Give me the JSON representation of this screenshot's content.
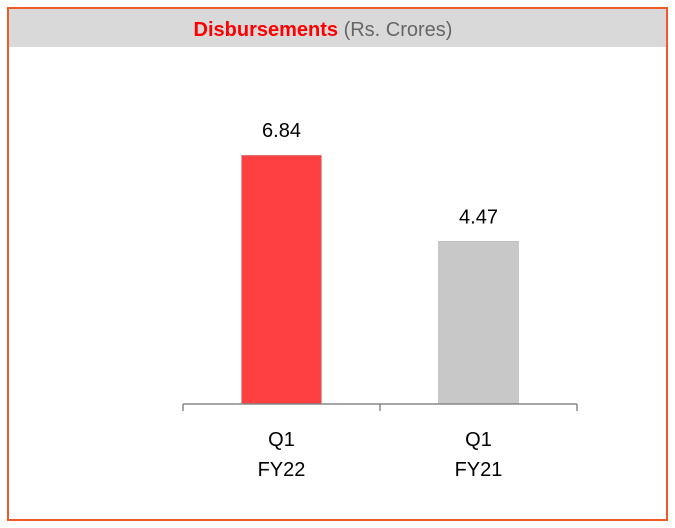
{
  "chart_data": {
    "type": "bar",
    "title": "Disbursements",
    "subtitle": "(Rs. Crores)",
    "categories": [
      [
        "Q1",
        "FY22"
      ],
      [
        "Q1",
        "FY21"
      ]
    ],
    "values": [
      6.84,
      4.47
    ],
    "colors": [
      "#ff4040",
      "#c8c8c8"
    ],
    "ylim": [
      0,
      8
    ]
  }
}
